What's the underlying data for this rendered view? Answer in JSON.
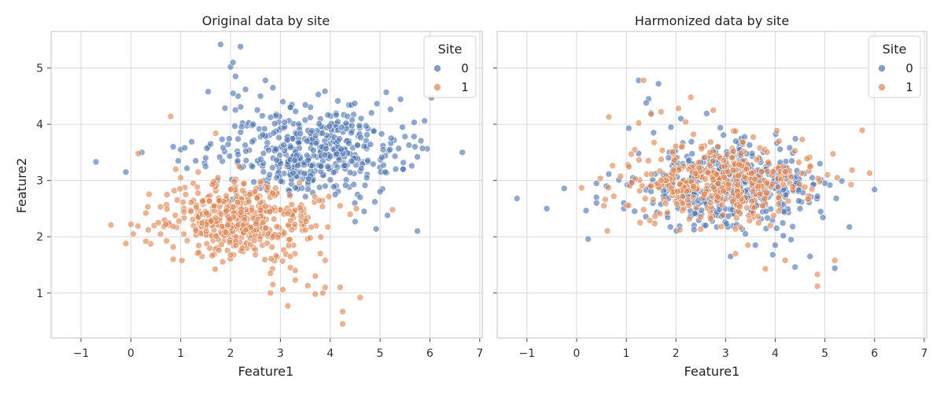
{
  "figure": {
    "ylabel": "Feature2"
  },
  "chart_data": [
    {
      "type": "scatter",
      "title": "Original data by site",
      "xlabel": "Feature1",
      "ylabel": "Feature2",
      "xlim": [
        -1.6,
        7.05
      ],
      "ylim": [
        0.2,
        5.65
      ],
      "xticks": [
        -1,
        0,
        1,
        2,
        3,
        4,
        5,
        6,
        7
      ],
      "yticks": [
        1,
        2,
        3,
        4,
        5
      ],
      "xtick_labels": [
        "−1",
        "0",
        "1",
        "2",
        "3",
        "4",
        "5",
        "6",
        "7"
      ],
      "ytick_labels": [
        "1",
        "2",
        "3",
        "4",
        "5"
      ],
      "grid": true,
      "legend": {
        "title": "Site",
        "placement": "top-right",
        "entries": [
          "0",
          "1"
        ]
      },
      "series": [
        {
          "name": "0",
          "color": "#4c72b0",
          "cluster": {
            "cx": 3.6,
            "cy": 3.55,
            "sx": 0.9,
            "sy": 0.38,
            "n": 420
          },
          "points": [
            [
              -0.7,
              3.33
            ],
            [
              -0.1,
              3.15
            ],
            [
              0.22,
              3.5
            ],
            [
              1.8,
              5.42
            ],
            [
              2.2,
              5.38
            ],
            [
              2.0,
              5.02
            ],
            [
              2.05,
              5.1
            ],
            [
              2.1,
              4.85
            ],
            [
              1.55,
              4.58
            ],
            [
              2.15,
              4.5
            ],
            [
              2.05,
              4.55
            ],
            [
              2.7,
              4.78
            ],
            [
              2.85,
              4.65
            ],
            [
              2.3,
              4.62
            ],
            [
              3.05,
              4.4
            ],
            [
              3.2,
              4.3
            ],
            [
              3.6,
              4.12
            ],
            [
              2.6,
              4.5
            ],
            [
              4.72,
              3.97
            ],
            [
              5.45,
              3.95
            ],
            [
              5.5,
              3.78
            ],
            [
              5.58,
              3.63
            ],
            [
              5.7,
              3.6
            ],
            [
              5.85,
              3.57
            ],
            [
              5.75,
              3.42
            ],
            [
              6.65,
              3.5
            ],
            [
              5.2,
              3.55
            ],
            [
              5.1,
              3.15
            ],
            [
              5.05,
              2.85
            ],
            [
              5.0,
              2.8
            ],
            [
              4.55,
              2.75
            ],
            [
              4.68,
              2.45
            ],
            [
              4.92,
              2.14
            ],
            [
              5.15,
              2.38
            ],
            [
              5.75,
              2.1
            ],
            [
              4.5,
              2.27
            ],
            [
              4.6,
              2.7
            ],
            [
              4.1,
              2.75
            ],
            [
              3.9,
              2.9
            ],
            [
              3.3,
              2.87
            ],
            [
              0.85,
              3.6
            ],
            [
              1.0,
              3.55
            ],
            [
              1.08,
              3.58
            ],
            [
              0.95,
              3.35
            ],
            [
              1.6,
              3.65
            ],
            [
              1.5,
              3.4
            ],
            [
              1.3,
              3.35
            ],
            [
              1.5,
              3.25
            ]
          ]
        },
        {
          "name": "1",
          "color": "#dd8452",
          "cluster": {
            "cx": 2.2,
            "cy": 2.3,
            "sx": 0.75,
            "sy": 0.32,
            "n": 420
          },
          "points": [
            [
              -0.4,
              2.21
            ],
            [
              -0.1,
              1.88
            ],
            [
              0.0,
              2.22
            ],
            [
              0.05,
              2.05
            ],
            [
              0.15,
              3.48
            ],
            [
              0.8,
              4.14
            ],
            [
              1.7,
              3.84
            ],
            [
              0.3,
              2.42
            ],
            [
              0.35,
              2.12
            ],
            [
              0.3,
              1.92
            ],
            [
              2.8,
              1.35
            ],
            [
              2.85,
              1.15
            ],
            [
              2.8,
              1.0
            ],
            [
              3.05,
              1.06
            ],
            [
              3.15,
              0.77
            ],
            [
              3.3,
              1.23
            ],
            [
              3.2,
              1.45
            ],
            [
              3.3,
              1.4
            ],
            [
              3.55,
              1.13
            ],
            [
              3.7,
              1.3
            ],
            [
              3.9,
              1.1
            ],
            [
              3.85,
              1.0
            ],
            [
              3.7,
              0.98
            ],
            [
              4.2,
              1.1
            ],
            [
              4.25,
              0.67
            ],
            [
              4.25,
              0.45
            ],
            [
              4.6,
              0.92
            ],
            [
              3.8,
              1.7
            ],
            [
              3.9,
              1.58
            ],
            [
              3.2,
              1.65
            ],
            [
              2.5,
              1.68
            ],
            [
              2.0,
              1.68
            ],
            [
              5.25,
              2.48
            ],
            [
              4.2,
              2.55
            ],
            [
              4.4,
              2.4
            ],
            [
              2.6,
              2.98
            ],
            [
              1.1,
              2.75
            ],
            [
              1.25,
              2.95
            ],
            [
              0.9,
              3.2
            ],
            [
              1.0,
              3.05
            ],
            [
              0.55,
              2.25
            ],
            [
              0.7,
              2.22
            ],
            [
              0.85,
              1.82
            ],
            [
              1.35,
              3.15
            ],
            [
              1.75,
              3.05
            ]
          ]
        }
      ]
    },
    {
      "type": "scatter",
      "title": "Harmonized data by site",
      "xlabel": "Feature1",
      "ylabel": "",
      "xlim": [
        -1.6,
        7.05
      ],
      "ylim": [
        0.2,
        5.65
      ],
      "xticks": [
        -1,
        0,
        1,
        2,
        3,
        4,
        5,
        6,
        7
      ],
      "yticks": [
        1,
        2,
        3,
        4,
        5
      ],
      "xtick_labels": [
        "−1",
        "0",
        "1",
        "2",
        "3",
        "4",
        "5",
        "6",
        "7"
      ],
      "ytick_labels": [],
      "grid": true,
      "legend": {
        "title": "Site",
        "placement": "top-right",
        "entries": [
          "0",
          "1"
        ]
      },
      "series": [
        {
          "name": "0",
          "color": "#4c72b0",
          "cluster": {
            "cx": 3.0,
            "cy": 2.9,
            "sx": 0.85,
            "sy": 0.35,
            "n": 420
          },
          "points": [
            [
              -1.2,
              2.68
            ],
            [
              -0.6,
              2.5
            ],
            [
              -0.25,
              2.86
            ],
            [
              0.4,
              2.95
            ],
            [
              0.4,
              2.7
            ],
            [
              0.4,
              2.6
            ],
            [
              0.6,
              2.9
            ],
            [
              1.25,
              4.78
            ],
            [
              1.45,
              4.45
            ],
            [
              1.65,
              4.72
            ],
            [
              1.4,
              4.38
            ],
            [
              1.5,
              4.2
            ],
            [
              1.05,
              3.93
            ],
            [
              1.55,
              3.85
            ],
            [
              1.9,
              3.95
            ],
            [
              2.1,
              4.1
            ],
            [
              6.0,
              2.84
            ],
            [
              5.2,
              1.44
            ],
            [
              4.4,
              1.46
            ],
            [
              4.7,
              1.65
            ],
            [
              4.35,
              2.18
            ],
            [
              3.1,
              1.65
            ],
            [
              3.6,
              1.85
            ],
            [
              3.95,
              1.68
            ],
            [
              4.0,
              1.85
            ],
            [
              4.5,
              2.5
            ],
            [
              4.85,
              2.72
            ],
            [
              5.1,
              2.92
            ],
            [
              5.0,
              2.95
            ],
            [
              4.9,
              3.3
            ],
            [
              4.1,
              3.32
            ],
            [
              3.4,
              2.05
            ],
            [
              2.6,
              2.2
            ],
            [
              0.95,
              2.5
            ],
            [
              0.95,
              2.6
            ]
          ]
        },
        {
          "name": "1",
          "color": "#dd8452",
          "cluster": {
            "cx": 2.8,
            "cy": 3.0,
            "sx": 0.9,
            "sy": 0.32,
            "n": 420
          },
          "points": [
            [
              0.65,
              4.13
            ],
            [
              1.35,
              4.78
            ],
            [
              2.3,
              4.48
            ],
            [
              2.05,
              4.28
            ],
            [
              1.7,
              4.22
            ],
            [
              1.5,
              4.18
            ],
            [
              1.25,
              4.02
            ],
            [
              2.75,
              4.25
            ],
            [
              5.9,
              3.13
            ],
            [
              5.25,
              3.05
            ],
            [
              5.2,
              1.58
            ],
            [
              4.85,
              1.33
            ],
            [
              4.85,
              1.12
            ],
            [
              3.8,
              1.43
            ],
            [
              4.2,
              1.58
            ],
            [
              3.2,
              1.7
            ],
            [
              3.45,
              1.85
            ],
            [
              3.9,
              2.2
            ],
            [
              3.2,
              2.14
            ],
            [
              0.1,
              2.87
            ],
            [
              0.55,
              2.55
            ],
            [
              0.75,
              2.72
            ],
            [
              1.35,
              2.48
            ],
            [
              1.8,
              3.0
            ],
            [
              2.5,
              2.35
            ],
            [
              2.7,
              2.32
            ],
            [
              5.05,
              3.1
            ],
            [
              4.7,
              3.25
            ],
            [
              1.7,
              3.0
            ]
          ]
        }
      ]
    }
  ]
}
